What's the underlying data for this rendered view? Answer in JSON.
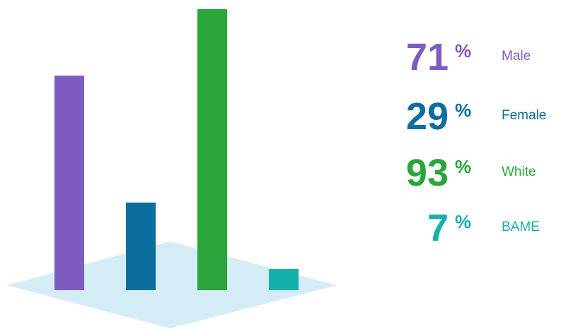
{
  "chart_data": {
    "type": "bar",
    "categories": [
      "Male",
      "Female",
      "White",
      "BAME"
    ],
    "values": [
      71,
      29,
      93,
      7
    ],
    "unit": "%",
    "colors": [
      "#7e5bbf",
      "#0b6e9e",
      "#2aa53a",
      "#14b1ac"
    ]
  }
}
